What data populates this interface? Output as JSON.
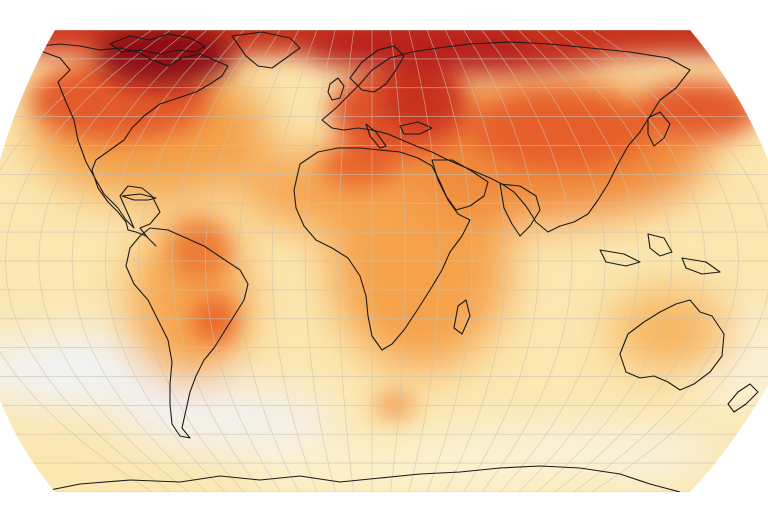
{
  "map": {
    "projection": "robinson",
    "colors": {
      "background": "#ffffff",
      "ocean_base": "#fbe7b0",
      "pale": "#fdf3d0",
      "cool": "#f1f3f7",
      "land_base": "#f6b158",
      "warm": "#f08a3a",
      "hot": "#e0532a",
      "hotter": "#c8301e",
      "hottest": "#8e1012",
      "coastline": "#1a1a1a",
      "graticule": "#c9c2b0"
    }
  }
}
